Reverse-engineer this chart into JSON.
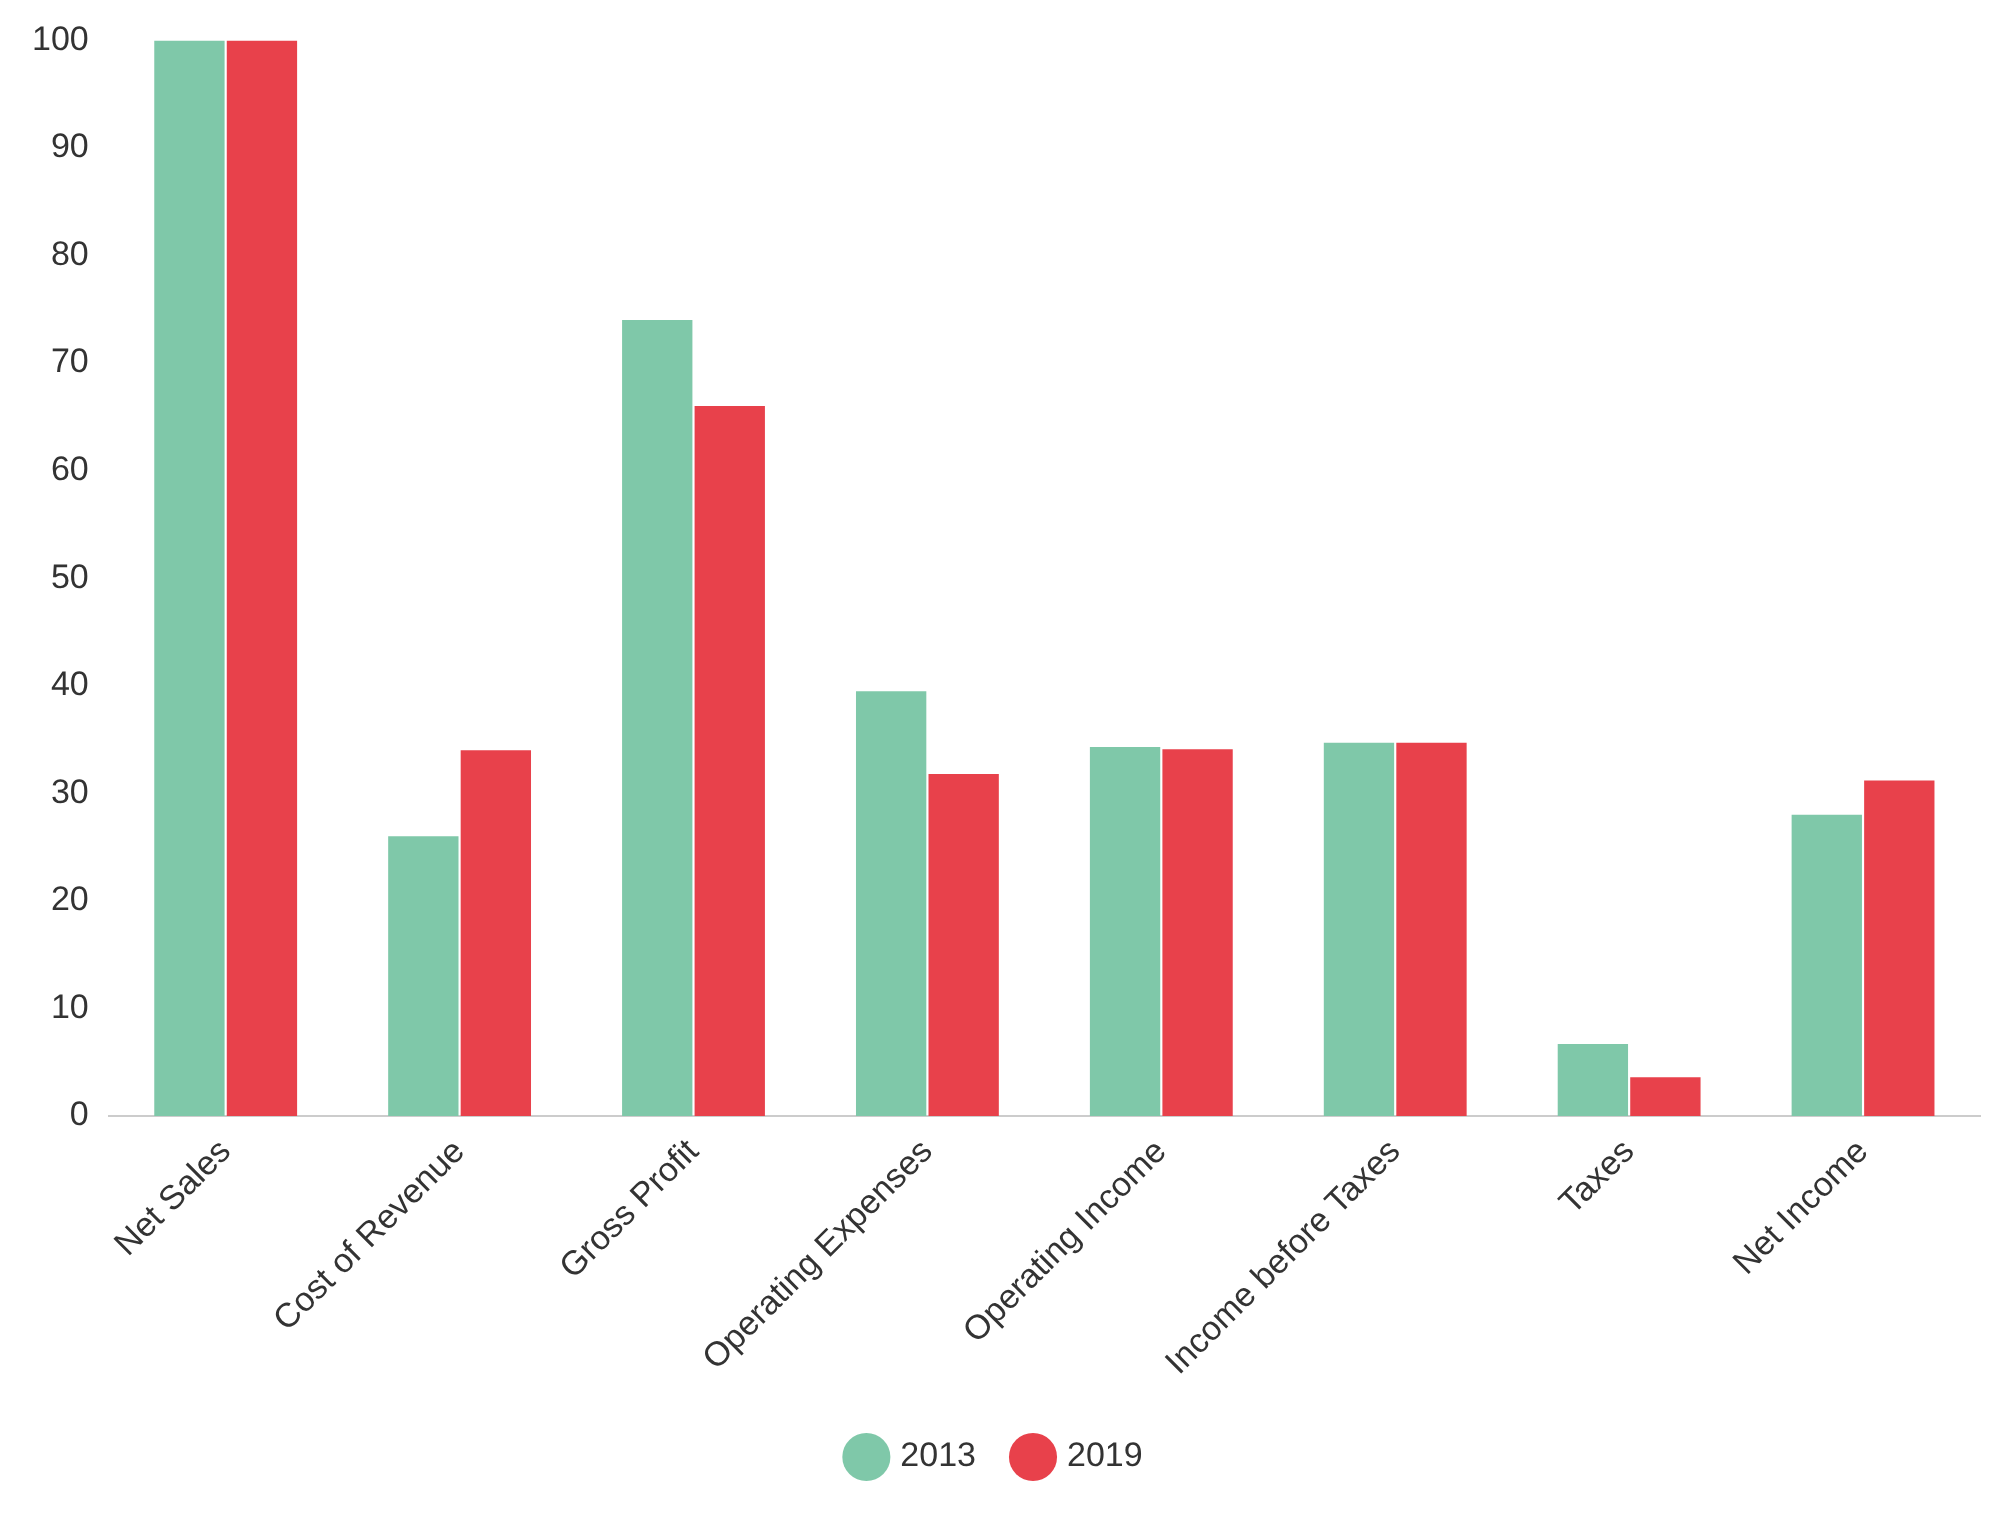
{
  "chart_data": {
    "type": "bar",
    "categories": [
      "Net Sales",
      "Cost of Revenue",
      "Gross Profit",
      "Operating Expenses",
      "Operating Income",
      "Income before Taxes",
      "Taxes",
      "Net Income"
    ],
    "series": [
      {
        "name": "2013",
        "color": "#7fc8a9",
        "values": [
          100,
          26,
          74,
          39.5,
          34.3,
          34.7,
          6.7,
          28
        ]
      },
      {
        "name": "2019",
        "color": "#e8414b",
        "values": [
          100,
          34,
          66,
          31.8,
          34.1,
          34.7,
          3.6,
          31.2
        ]
      }
    ],
    "ylim": [
      0,
      100
    ],
    "yticks": [
      0,
      10,
      20,
      30,
      40,
      50,
      60,
      70,
      80,
      90,
      100
    ],
    "grid": false,
    "legend": "bottom"
  }
}
